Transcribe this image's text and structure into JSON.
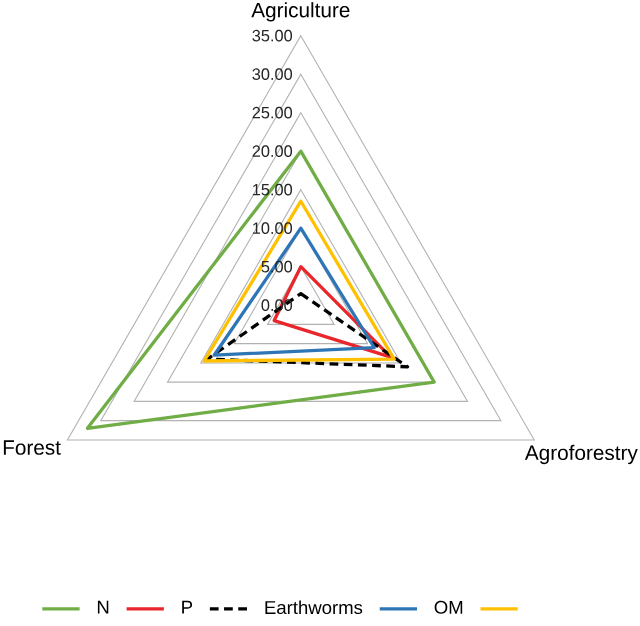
{
  "chart_data": {
    "type": "radar",
    "categories": [
      "Agriculture",
      "Agroforestry",
      "Forest"
    ],
    "series": [
      {
        "name": "N",
        "color": "#70ad47",
        "values": [
          20,
          20,
          32
        ]
      },
      {
        "name": "P",
        "color": "#e8262b",
        "values": [
          5,
          13.5,
          4
        ]
      },
      {
        "name": "Earthworms",
        "color": "#000000",
        "values": [
          1.5,
          16,
          14
        ],
        "line_style": "dashed"
      },
      {
        "name": "OM",
        "color": "#2e75b6",
        "values": [
          10,
          11,
          13
        ]
      },
      {
        "color": "#ffc000",
        "values": [
          13.5,
          14,
          14.5
        ]
      }
    ],
    "ylim": [
      0,
      35
    ],
    "yticks": [
      {
        "value": 0,
        "label": "0.00"
      },
      {
        "value": 5,
        "label": "5.00"
      },
      {
        "value": 10,
        "label": "10.00"
      },
      {
        "value": 15,
        "label": "15.00"
      },
      {
        "value": 20,
        "label": "20.00"
      },
      {
        "value": 25,
        "label": "25.00"
      },
      {
        "value": 30,
        "label": "30.00"
      },
      {
        "value": 35,
        "label": "35.00"
      }
    ],
    "grid": true,
    "legend": "bottom",
    "line_style": "solid",
    "marker": "none"
  }
}
